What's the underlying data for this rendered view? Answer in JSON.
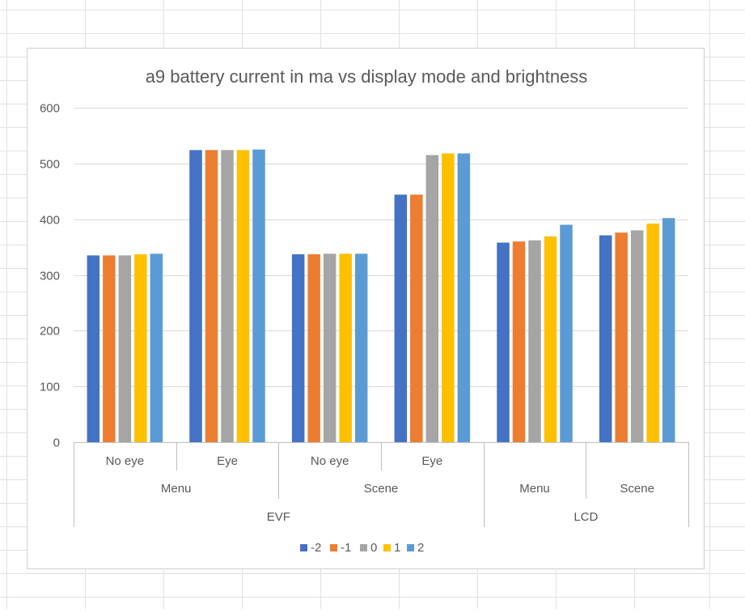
{
  "colors": {
    "series": [
      "#4472C4",
      "#ED7D31",
      "#A5A5A5",
      "#FFC000",
      "#5B9BD5"
    ],
    "gridline": "#d9d9d9",
    "axis": "#bfbfbf",
    "text": "#595959",
    "sheet_grid": "#e1e1e1"
  },
  "chart_data": {
    "type": "bar",
    "title": "a9 battery current in ma vs display mode and brightness",
    "xlabel": "",
    "ylabel": "",
    "ylim": [
      0,
      600
    ],
    "yticks": [
      0,
      100,
      200,
      300,
      400,
      500,
      600
    ],
    "grid": true,
    "legend_position": "bottom",
    "categories": [
      {
        "label": "No eye",
        "group": "Menu",
        "supergroup": "EVF"
      },
      {
        "label": "Eye",
        "group": "Menu",
        "supergroup": "EVF"
      },
      {
        "label": "No eye",
        "group": "Scene",
        "supergroup": "EVF"
      },
      {
        "label": "Eye",
        "group": "Scene",
        "supergroup": "EVF"
      },
      {
        "label": "",
        "group": "Menu",
        "supergroup": "LCD"
      },
      {
        "label": "",
        "group": "Scene",
        "supergroup": "LCD"
      }
    ],
    "groups": [
      {
        "label": "Menu",
        "start": 0,
        "end": 1
      },
      {
        "label": "Scene",
        "start": 2,
        "end": 3
      },
      {
        "label": "Menu",
        "start": 4,
        "end": 4
      },
      {
        "label": "Scene",
        "start": 5,
        "end": 5
      }
    ],
    "supergroups": [
      {
        "label": "EVF",
        "start": 0,
        "end": 3
      },
      {
        "label": "LCD",
        "start": 4,
        "end": 5
      }
    ],
    "series": [
      {
        "name": "-2",
        "values": [
          335,
          524,
          337,
          444,
          358,
          371
        ]
      },
      {
        "name": "-1",
        "values": [
          335,
          524,
          337,
          444,
          360,
          376
        ]
      },
      {
        "name": "0",
        "values": [
          335,
          524,
          338,
          515,
          362,
          380
        ]
      },
      {
        "name": "1",
        "values": [
          337,
          524,
          338,
          518,
          369,
          392
        ]
      },
      {
        "name": "2",
        "values": [
          338,
          525,
          338,
          518,
          390,
          402
        ]
      }
    ]
  }
}
